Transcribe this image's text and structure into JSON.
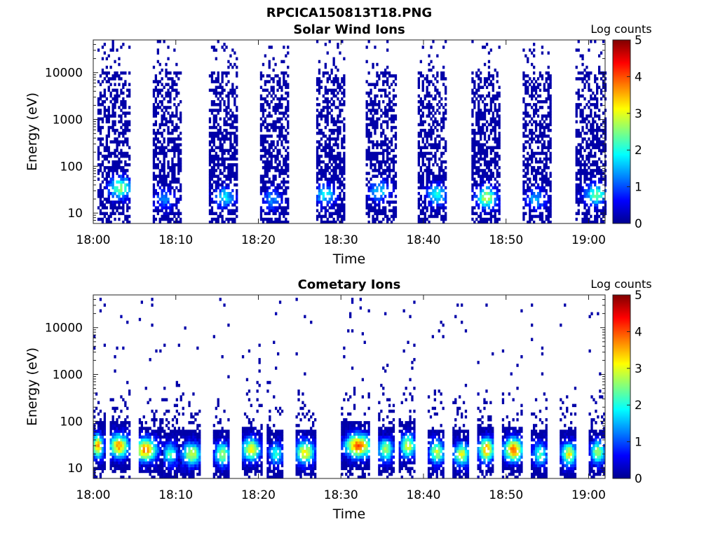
{
  "chart_data": [
    {
      "type": "heatmap",
      "figure_title": "RPCICA150813T18.PNG",
      "title": "Solar Wind Ions",
      "xlabel": "Time",
      "ylabel": "Energy (eV)",
      "x_tick_labels": [
        "18:00",
        "18:10",
        "18:20",
        "18:30",
        "18:40",
        "18:50",
        "19:00"
      ],
      "x_tick_minutes": [
        0,
        10,
        20,
        30,
        40,
        50,
        60
      ],
      "xlim_minutes": [
        0,
        62
      ],
      "y_scale": "log",
      "ylim": [
        6,
        50000
      ],
      "y_tick_labels": [
        "10",
        "100",
        "1000",
        "10000"
      ],
      "y_tick_values": [
        10,
        100,
        1000,
        10000
      ],
      "colorbar": {
        "label": "Log counts",
        "ticks": [
          "0",
          "1",
          "2",
          "3",
          "4",
          "5"
        ],
        "range": [
          0,
          5
        ],
        "colormap": "jet"
      },
      "bursts": [
        {
          "t_start": 0.5,
          "t_end": 4.3,
          "peak_t": 3.2,
          "peak_energy": 35,
          "peak_log_counts": 2.6
        },
        {
          "t_start": 7.2,
          "t_end": 10.6,
          "peak_t": 8.5,
          "peak_energy": 20,
          "peak_log_counts": 1.2
        },
        {
          "t_start": 14.0,
          "t_end": 17.4,
          "peak_t": 15.8,
          "peak_energy": 22,
          "peak_log_counts": 1.8
        },
        {
          "t_start": 20.2,
          "t_end": 23.6,
          "peak_t": 21.5,
          "peak_energy": 20,
          "peak_log_counts": 1.3
        },
        {
          "t_start": 27.0,
          "t_end": 30.4,
          "peak_t": 28.0,
          "peak_energy": 25,
          "peak_log_counts": 1.9
        },
        {
          "t_start": 33.0,
          "t_end": 36.6,
          "peak_t": 34.6,
          "peak_energy": 30,
          "peak_log_counts": 1.7
        },
        {
          "t_start": 39.3,
          "t_end": 42.7,
          "peak_t": 41.5,
          "peak_energy": 25,
          "peak_log_counts": 2.0
        },
        {
          "t_start": 45.8,
          "t_end": 49.2,
          "peak_t": 47.5,
          "peak_energy": 22,
          "peak_log_counts": 2.8
        },
        {
          "t_start": 52.0,
          "t_end": 55.4,
          "peak_t": 53.5,
          "peak_energy": 20,
          "peak_log_counts": 1.5
        },
        {
          "t_start": 58.4,
          "t_end": 62.0,
          "peak_t": 60.8,
          "peak_energy": 25,
          "peak_log_counts": 2.3
        }
      ]
    },
    {
      "type": "heatmap",
      "title": "Cometary Ions",
      "xlabel": "Time",
      "ylabel": "Energy (eV)",
      "x_tick_labels": [
        "18:00",
        "18:10",
        "18:20",
        "18:30",
        "18:40",
        "18:50",
        "19:00"
      ],
      "x_tick_minutes": [
        0,
        10,
        20,
        30,
        40,
        50,
        60
      ],
      "xlim_minutes": [
        0,
        62
      ],
      "y_scale": "log",
      "ylim": [
        6,
        50000
      ],
      "y_tick_labels": [
        "10",
        "100",
        "1000",
        "10000"
      ],
      "y_tick_values": [
        10,
        100,
        1000,
        10000
      ],
      "colorbar": {
        "label": "Log counts",
        "ticks": [
          "0",
          "1",
          "2",
          "3",
          "4",
          "5"
        ],
        "range": [
          0,
          5
        ],
        "colormap": "jet"
      },
      "bursts": [
        {
          "t_start": 0.0,
          "t_end": 1.5,
          "peak_t": 0.4,
          "peak_energy": 30,
          "peak_log_counts": 3.6
        },
        {
          "t_start": 2.0,
          "t_end": 4.5,
          "peak_t": 3.0,
          "peak_energy": 30,
          "peak_log_counts": 3.6
        },
        {
          "t_start": 5.5,
          "t_end": 8.5,
          "peak_t": 6.2,
          "peak_energy": 25,
          "peak_log_counts": 3.8
        },
        {
          "t_start": 8.5,
          "t_end": 10.5,
          "peak_t": 9.2,
          "peak_energy": 20,
          "peak_log_counts": 2.2
        },
        {
          "t_start": 10.5,
          "t_end": 13.0,
          "peak_t": 11.8,
          "peak_energy": 20,
          "peak_log_counts": 3.0
        },
        {
          "t_start": 14.5,
          "t_end": 16.5,
          "peak_t": 15.5,
          "peak_energy": 20,
          "peak_log_counts": 2.8
        },
        {
          "t_start": 18.0,
          "t_end": 20.5,
          "peak_t": 19.0,
          "peak_energy": 25,
          "peak_log_counts": 3.1
        },
        {
          "t_start": 21.0,
          "t_end": 23.0,
          "peak_t": 22.0,
          "peak_energy": 20,
          "peak_log_counts": 2.0
        },
        {
          "t_start": 24.5,
          "t_end": 27.0,
          "peak_t": 25.5,
          "peak_energy": 22,
          "peak_log_counts": 3.2
        },
        {
          "t_start": 30.0,
          "t_end": 33.5,
          "peak_t": 32.0,
          "peak_energy": 30,
          "peak_log_counts": 3.9
        },
        {
          "t_start": 34.5,
          "t_end": 36.5,
          "peak_t": 35.3,
          "peak_energy": 25,
          "peak_log_counts": 2.8
        },
        {
          "t_start": 37.0,
          "t_end": 39.0,
          "peak_t": 38.0,
          "peak_energy": 30,
          "peak_log_counts": 3.0
        },
        {
          "t_start": 40.5,
          "t_end": 42.5,
          "peak_t": 41.5,
          "peak_energy": 22,
          "peak_log_counts": 2.9
        },
        {
          "t_start": 43.5,
          "t_end": 45.5,
          "peak_t": 44.5,
          "peak_energy": 20,
          "peak_log_counts": 3.0
        },
        {
          "t_start": 46.5,
          "t_end": 48.5,
          "peak_t": 47.5,
          "peak_energy": 25,
          "peak_log_counts": 3.7
        },
        {
          "t_start": 49.5,
          "t_end": 52.0,
          "peak_t": 50.8,
          "peak_energy": 25,
          "peak_log_counts": 3.9
        },
        {
          "t_start": 53.0,
          "t_end": 55.0,
          "peak_t": 54.0,
          "peak_energy": 20,
          "peak_log_counts": 2.3
        },
        {
          "t_start": 56.5,
          "t_end": 58.5,
          "peak_t": 57.5,
          "peak_energy": 20,
          "peak_log_counts": 3.1
        },
        {
          "t_start": 60.0,
          "t_end": 62.0,
          "peak_t": 61.0,
          "peak_energy": 22,
          "peak_log_counts": 2.7
        }
      ]
    }
  ]
}
